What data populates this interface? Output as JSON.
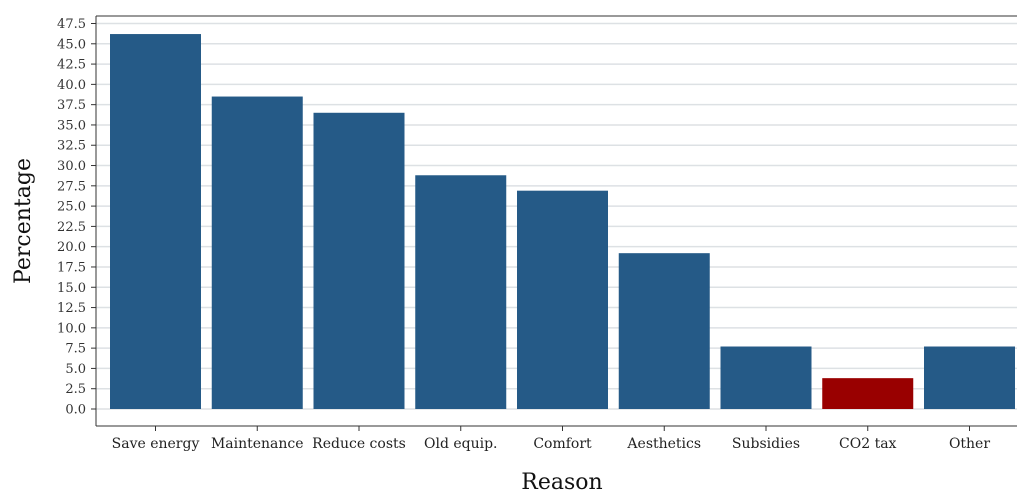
{
  "colors": {
    "bar": "#255a87",
    "highlight": "#990000",
    "grid": "#dde1e4",
    "axis": "#333333"
  },
  "chart_data": {
    "type": "bar",
    "xlabel": "Reason",
    "ylabel": "Percentage",
    "categories": [
      "Save energy",
      "Maintenance",
      "Reduce costs",
      "Old equip.",
      "Comfort",
      "Aesthetics",
      "Subsidies",
      "CO2 tax",
      "Other"
    ],
    "values": [
      46.2,
      38.5,
      36.5,
      28.8,
      26.9,
      19.2,
      7.7,
      3.8,
      7.7
    ],
    "highlighted_category": "CO2 tax",
    "ylim": [
      0,
      47.5
    ],
    "yticks": [
      "0.0",
      "2.5",
      "5.0",
      "7.5",
      "10.0",
      "12.5",
      "15.0",
      "17.5",
      "20.0",
      "22.5",
      "25.0",
      "27.5",
      "30.0",
      "32.5",
      "35.0",
      "37.5",
      "40.0",
      "42.5",
      "45.0",
      "47.5"
    ],
    "grid": true,
    "legend": "none"
  }
}
